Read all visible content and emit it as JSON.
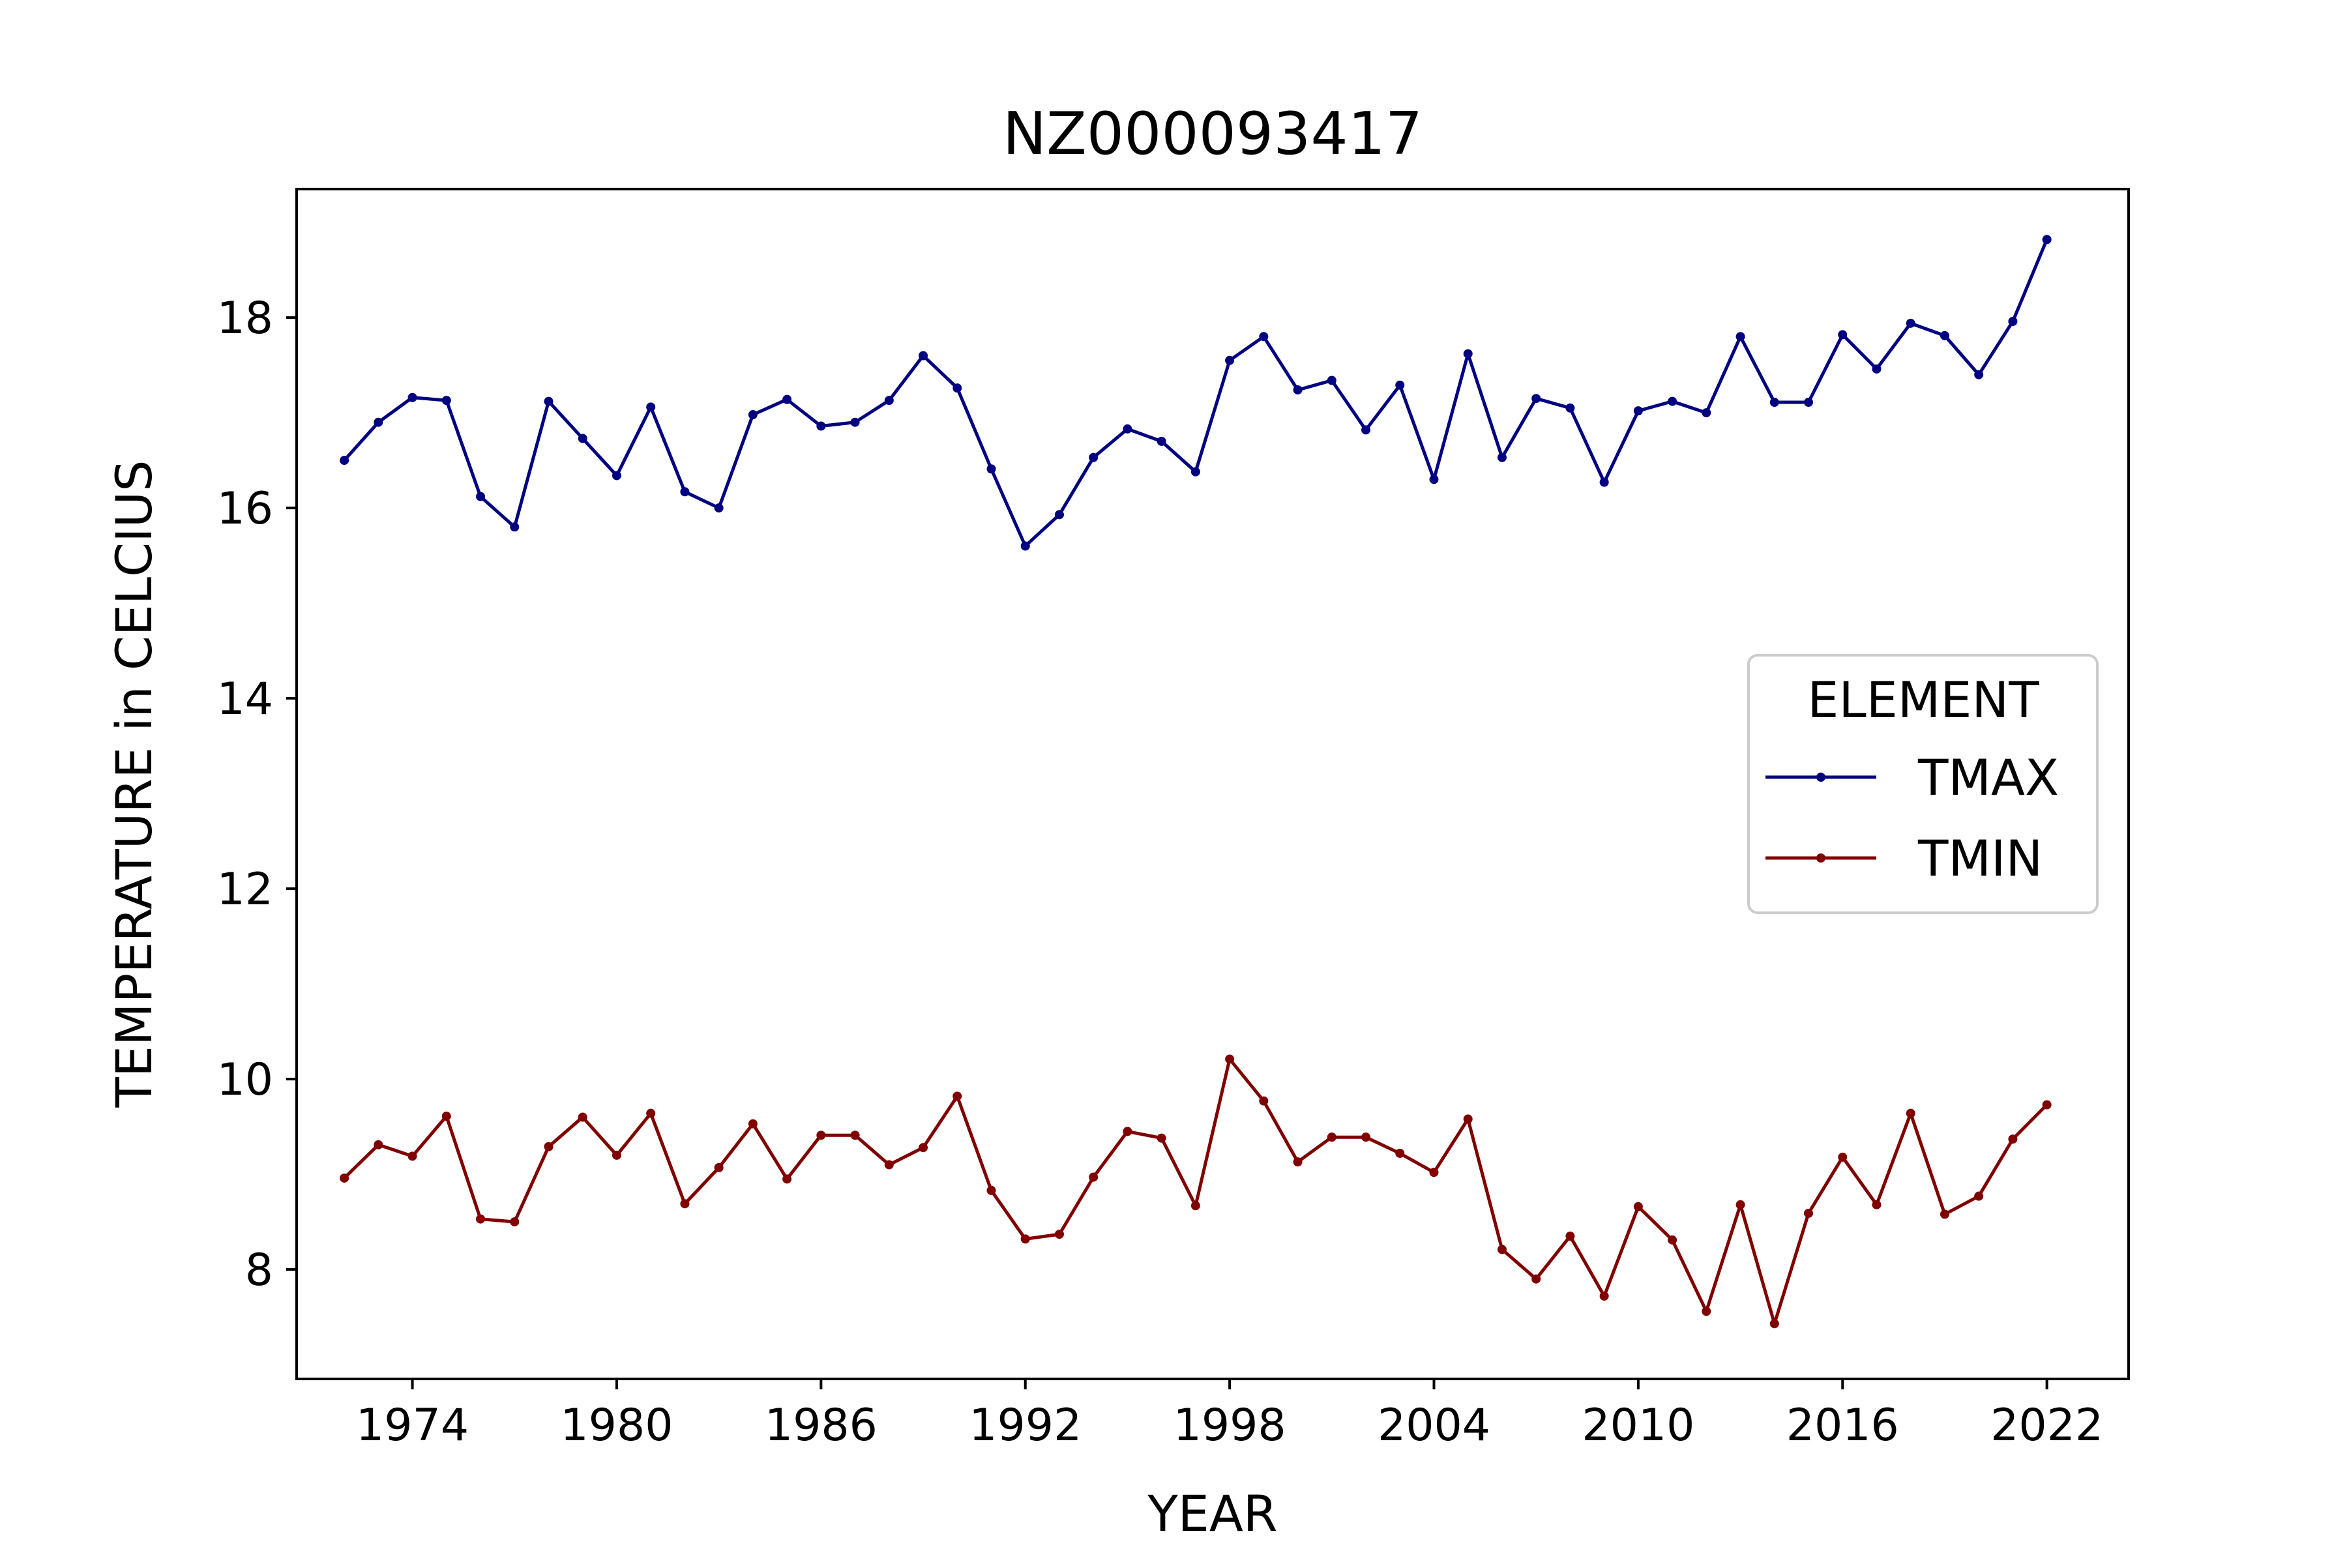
{
  "chart_data": {
    "type": "line",
    "title": "NZ000093417",
    "xlabel": "YEAR",
    "ylabel": "TEMPERATURE in CELCIUS",
    "xlim": [
      1970.6,
      2024.4
    ],
    "ylim": [
      6.85,
      19.35
    ],
    "x_ticks": [
      1974,
      1980,
      1986,
      1992,
      1998,
      2004,
      2010,
      2016,
      2022
    ],
    "x_tick_labels": [
      "1974",
      "1980",
      "1986",
      "1992",
      "1998",
      "2004",
      "2010",
      "2016",
      "2022"
    ],
    "y_ticks": [
      8,
      10,
      12,
      14,
      16,
      18
    ],
    "y_tick_labels": [
      "8",
      "10",
      "12",
      "14",
      "16",
      "18"
    ],
    "grid": false,
    "legend": {
      "title": "ELEMENT",
      "position": "right"
    },
    "x": [
      1972,
      1973,
      1974,
      1975,
      1976,
      1977,
      1978,
      1979,
      1980,
      1981,
      1982,
      1983,
      1984,
      1985,
      1986,
      1987,
      1988,
      1989,
      1990,
      1991,
      1992,
      1993,
      1994,
      1995,
      1996,
      1997,
      1998,
      1999,
      2000,
      2001,
      2002,
      2003,
      2004,
      2005,
      2006,
      2007,
      2008,
      2009,
      2010,
      2011,
      2012,
      2013,
      2014,
      2015,
      2016,
      2017,
      2018,
      2019,
      2020,
      2021,
      2022
    ],
    "series": [
      {
        "name": "TMAX",
        "color": "#000080",
        "values": [
          16.5,
          16.9,
          17.16,
          17.13,
          16.12,
          15.8,
          17.12,
          16.73,
          16.34,
          17.06,
          16.17,
          16.0,
          16.98,
          17.14,
          16.86,
          16.9,
          17.13,
          17.6,
          17.26,
          16.41,
          15.6,
          15.93,
          16.53,
          16.83,
          16.7,
          16.38,
          17.55,
          17.8,
          17.24,
          17.34,
          16.82,
          17.29,
          16.3,
          17.62,
          16.53,
          17.15,
          17.05,
          16.27,
          17.02,
          17.12,
          17.0,
          17.8,
          17.11,
          17.11,
          17.82,
          17.46,
          17.94,
          17.81,
          17.4,
          17.96,
          18.82
        ]
      },
      {
        "name": "TMIN",
        "color": "#800000",
        "values": [
          8.96,
          9.31,
          9.19,
          9.61,
          8.53,
          8.5,
          9.29,
          9.6,
          9.2,
          9.64,
          8.69,
          9.07,
          9.53,
          8.95,
          9.41,
          9.41,
          9.1,
          9.28,
          9.82,
          8.83,
          8.32,
          8.37,
          8.97,
          9.45,
          9.38,
          8.67,
          10.21,
          9.77,
          9.13,
          9.39,
          9.39,
          9.22,
          9.02,
          9.58,
          8.21,
          7.9,
          8.35,
          7.72,
          8.66,
          8.31,
          7.56,
          8.68,
          7.43,
          8.59,
          9.18,
          8.68,
          9.64,
          8.58,
          8.77,
          9.37,
          9.73
        ]
      }
    ]
  }
}
